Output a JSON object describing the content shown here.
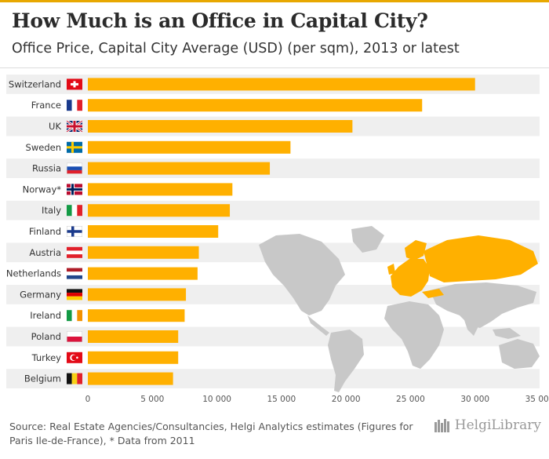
{
  "header": {
    "title": "How Much is an Office in Capital City?",
    "subtitle": "Office Price, Capital City Average (USD) (per sqm), 2013 or latest"
  },
  "footer": {
    "source": "Source: Real Estate Agencies/Consultancies, Helgi Analytics estimates (Figures for Paris Ile-de-France), * Data from 2011",
    "logo": "HelgiLibrary"
  },
  "colors": {
    "bar": "#ffb000",
    "band": "#efefef",
    "map": "#c8c8c8",
    "map_highlight": "#ffb000",
    "text": "#333333"
  },
  "chart_data": {
    "type": "bar",
    "orientation": "horizontal",
    "title": "How Much is an Office in Capital City?",
    "subtitle": "Office Price, Capital City Average (USD) (per sqm), 2013 or latest",
    "xlabel": "",
    "ylabel": "",
    "xlim": [
      0,
      35000
    ],
    "xticks": [
      0,
      5000,
      10000,
      15000,
      20000,
      25000,
      30000,
      35000
    ],
    "xtick_labels": [
      "0",
      "5 000",
      "10 000",
      "15 000",
      "20 000",
      "25 000",
      "30 000",
      "35 000"
    ],
    "categories": [
      "Switzerland",
      "France",
      "UK",
      "Sweden",
      "Russia",
      "Norway*",
      "Italy",
      "Finland",
      "Austria",
      "Netherlands",
      "Germany",
      "Ireland",
      "Poland",
      "Turkey",
      "Belgium"
    ],
    "flags": [
      "switzerland",
      "france",
      "uk",
      "sweden",
      "russia",
      "norway",
      "italy",
      "finland",
      "austria",
      "netherlands",
      "germany",
      "ireland",
      "poland",
      "turkey",
      "belgium"
    ],
    "values": [
      30000,
      25900,
      20500,
      15700,
      14100,
      11200,
      11000,
      10100,
      8600,
      8500,
      7600,
      7500,
      7000,
      7000,
      6600
    ]
  }
}
